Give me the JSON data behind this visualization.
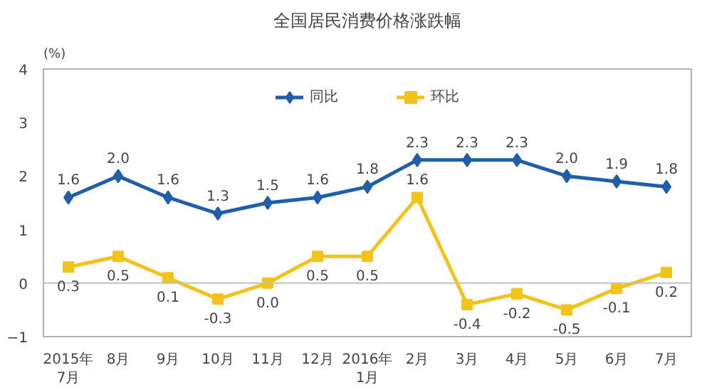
{
  "chart_data": {
    "type": "line",
    "title": "全国居民消费价格涨跌幅",
    "ylabel": "(%)",
    "categories": [
      "2015年\n7月",
      "8月",
      "9月",
      "10月",
      "11月",
      "12月",
      "2016年\n1月",
      "2月",
      "3月",
      "4月",
      "5月",
      "6月",
      "7月"
    ],
    "series": [
      {
        "name": "同比",
        "color": "#1f5fa8",
        "marker": "diamond",
        "values": [
          1.6,
          2.0,
          1.6,
          1.3,
          1.5,
          1.6,
          1.8,
          2.3,
          2.3,
          2.3,
          2.0,
          1.9,
          1.8
        ],
        "value_labels": [
          "1.6",
          "2.0",
          "1.6",
          "1.3",
          "1.5",
          "1.6",
          "1.8",
          "2.3",
          "2.3",
          "2.3",
          "2.0",
          "1.9",
          "1.8"
        ]
      },
      {
        "name": "环比",
        "color": "#f2c318",
        "marker": "square",
        "values": [
          0.3,
          0.5,
          0.1,
          -0.3,
          0.0,
          0.5,
          0.5,
          1.6,
          -0.4,
          -0.2,
          -0.5,
          -0.1,
          0.2
        ],
        "value_labels": [
          "0.3",
          "0.5",
          "0.1",
          "-0.3",
          "0.0",
          "0.5",
          "0.5",
          "1.6",
          "-0.4",
          "-0.2",
          "-0.5",
          "-0.1",
          "0.2"
        ]
      }
    ],
    "ylim": [
      -1,
      4
    ],
    "yticks": [
      -1,
      0,
      1,
      2,
      3,
      4
    ],
    "grid": false,
    "legend": "top",
    "ref_lines": [
      {
        "axis": "y",
        "value": 0,
        "color": "#c0c0c0"
      }
    ]
  }
}
